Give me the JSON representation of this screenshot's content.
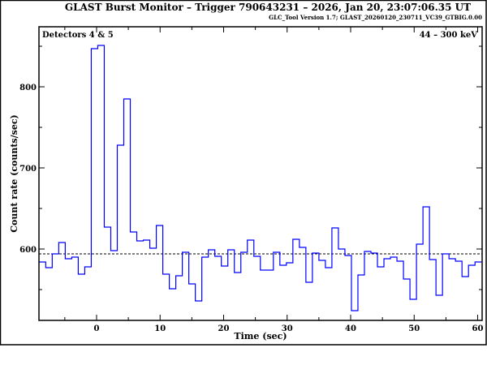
{
  "chart_data": {
    "type": "line",
    "style": "histogram-step",
    "title": "GLAST Burst Monitor  –  Trigger 790643231  –  2026, Jan 20, 23:07:06.35 UT",
    "subtitle": "GLC_Tool Version 1.7; GLAST_20260120_230711_VC39_GTBIG.0.00",
    "xlabel": "Time (sec)",
    "ylabel": "Count rate (counts/sec)",
    "annotation_left": "Detectors 4 & 5",
    "annotation_right": "44 – 300 keV",
    "xlim": [
      -9.07,
      60.7
    ],
    "ylim": [
      512,
      874
    ],
    "xticks": [
      0,
      10,
      20,
      30,
      40,
      50,
      60
    ],
    "xtick_labels": [
      "0",
      "10",
      "20",
      "30",
      "40",
      "50",
      "60"
    ],
    "x_minor_ticks": [
      -5,
      5,
      15,
      25,
      35,
      45,
      55
    ],
    "yticks": [
      600,
      700,
      800
    ],
    "ytick_labels": [
      "600",
      "700",
      "800"
    ],
    "y_minor_ticks": [
      550,
      650,
      750,
      850
    ],
    "bin_start": -9.03,
    "bin_width": 1.024,
    "values": [
      584,
      577,
      594,
      608,
      588,
      590,
      569,
      578,
      847,
      851,
      627,
      598,
      728,
      785,
      621,
      610,
      611,
      601,
      629,
      569,
      551,
      567,
      596,
      557,
      536,
      590,
      599,
      591,
      579,
      599,
      571,
      596,
      611,
      591,
      574,
      574,
      596,
      580,
      583,
      612,
      602,
      559,
      595,
      586,
      577,
      626,
      600,
      592,
      524,
      568,
      597,
      595,
      578,
      588,
      590,
      585,
      563,
      538,
      606,
      652,
      587,
      543,
      594,
      588,
      585,
      566,
      580,
      584
    ],
    "background_level": 594,
    "series_color": "#0000ff",
    "background_color": "#000000",
    "grid": false
  }
}
